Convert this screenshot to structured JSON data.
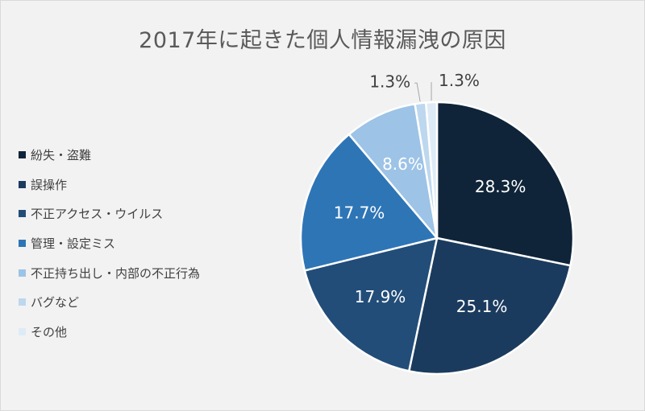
{
  "chart_data": {
    "type": "pie",
    "title": "2017年に起きた個人情報漏洩の原因",
    "categories": [
      "紛失・盗難",
      "誤操作",
      "不正アクセス・ウイルス",
      "管理・設定ミス",
      "不正持ち出し・内部の不正行為",
      "バグなど",
      "その他"
    ],
    "values": [
      28.3,
      25.1,
      17.9,
      17.7,
      8.6,
      1.3,
      1.3
    ],
    "labels": [
      "28.3%",
      "25.1%",
      "17.9%",
      "17.7%",
      "8.6%",
      "1.3%",
      "1.3%"
    ],
    "colors": [
      "#0f2438",
      "#1b3b5e",
      "#224d79",
      "#2e75b6",
      "#9dc3e6",
      "#bdd7ee",
      "#deebf7"
    ],
    "label_colors": [
      "#ffffff",
      "#ffffff",
      "#ffffff",
      "#ffffff",
      "#ffffff",
      "#404040",
      "#404040"
    ],
    "legend_position": "left",
    "start_angle": "12 o'clock, clockwise"
  }
}
